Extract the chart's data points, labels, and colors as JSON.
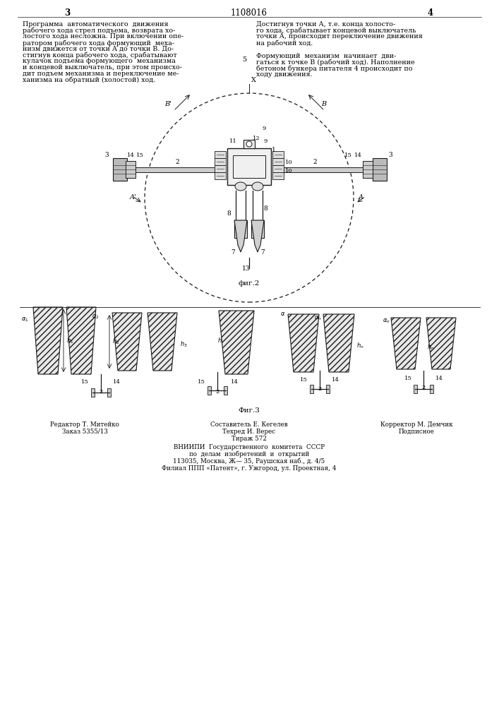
{
  "page_number_left": "3",
  "page_number_right": "4",
  "patent_number": "1108016",
  "col1_lines": [
    "Программа  автоматического  движения",
    "рабочего хода стрел подъема, возврата хо-",
    "лостого хода несложна. При включении опе-",
    "ратором рабочего хода формующий  меха-",
    "низм движется от точки А до точки В. До-",
    "стигнув конца рабочего хода, срабатывают",
    "кулачок подъема формующего  механизма",
    "и концевой выключатель, при этом происхо-",
    "дит подъем механизма и переключение ме-",
    "ханизма на обратный (холостой) ход."
  ],
  "col2_p1_lines": [
    "Достигнув точки А, т.е. конца холосто-",
    "го хода, срабатывает концевой выключатель",
    "точки А, происходит переключение движения",
    "на рабочий ход."
  ],
  "col2_p2_lines": [
    "Формующий  механизм  начинает  дви-",
    "гаться к точке В (рабочий ход). Наполнение",
    "бетоном бункера питателя 4 происходит по",
    "ходу движения."
  ],
  "fig2_caption": "фиг.2",
  "fig3_caption": "Фиг.3",
  "editor_line": "Редактор Т. Митейко",
  "order_line": "Заказ 5355/13",
  "composer_line": "Составитель Е. Кегелев",
  "techred_line": "Техред И. Верес",
  "tirazh_line": "Тираж 572",
  "corrector_line": "Корректор М. Демчик",
  "podpisnoe_line": "Подписное",
  "vnipi_line1": "ВНИИПИ  Государственного  комитета  СССР",
  "vnipi_line2": "по  делам  изобретений  и  открытий",
  "vnipi_line3": "113035, Москва, Ж— 35, Раушская наб., д. 4/5",
  "vnipi_line4": "Филиал ППП «Патент», г. Ужгород, ул. Проектная, 4",
  "bg_color": "#ffffff",
  "text_color": "#000000",
  "line_color": "#1a1a1a"
}
